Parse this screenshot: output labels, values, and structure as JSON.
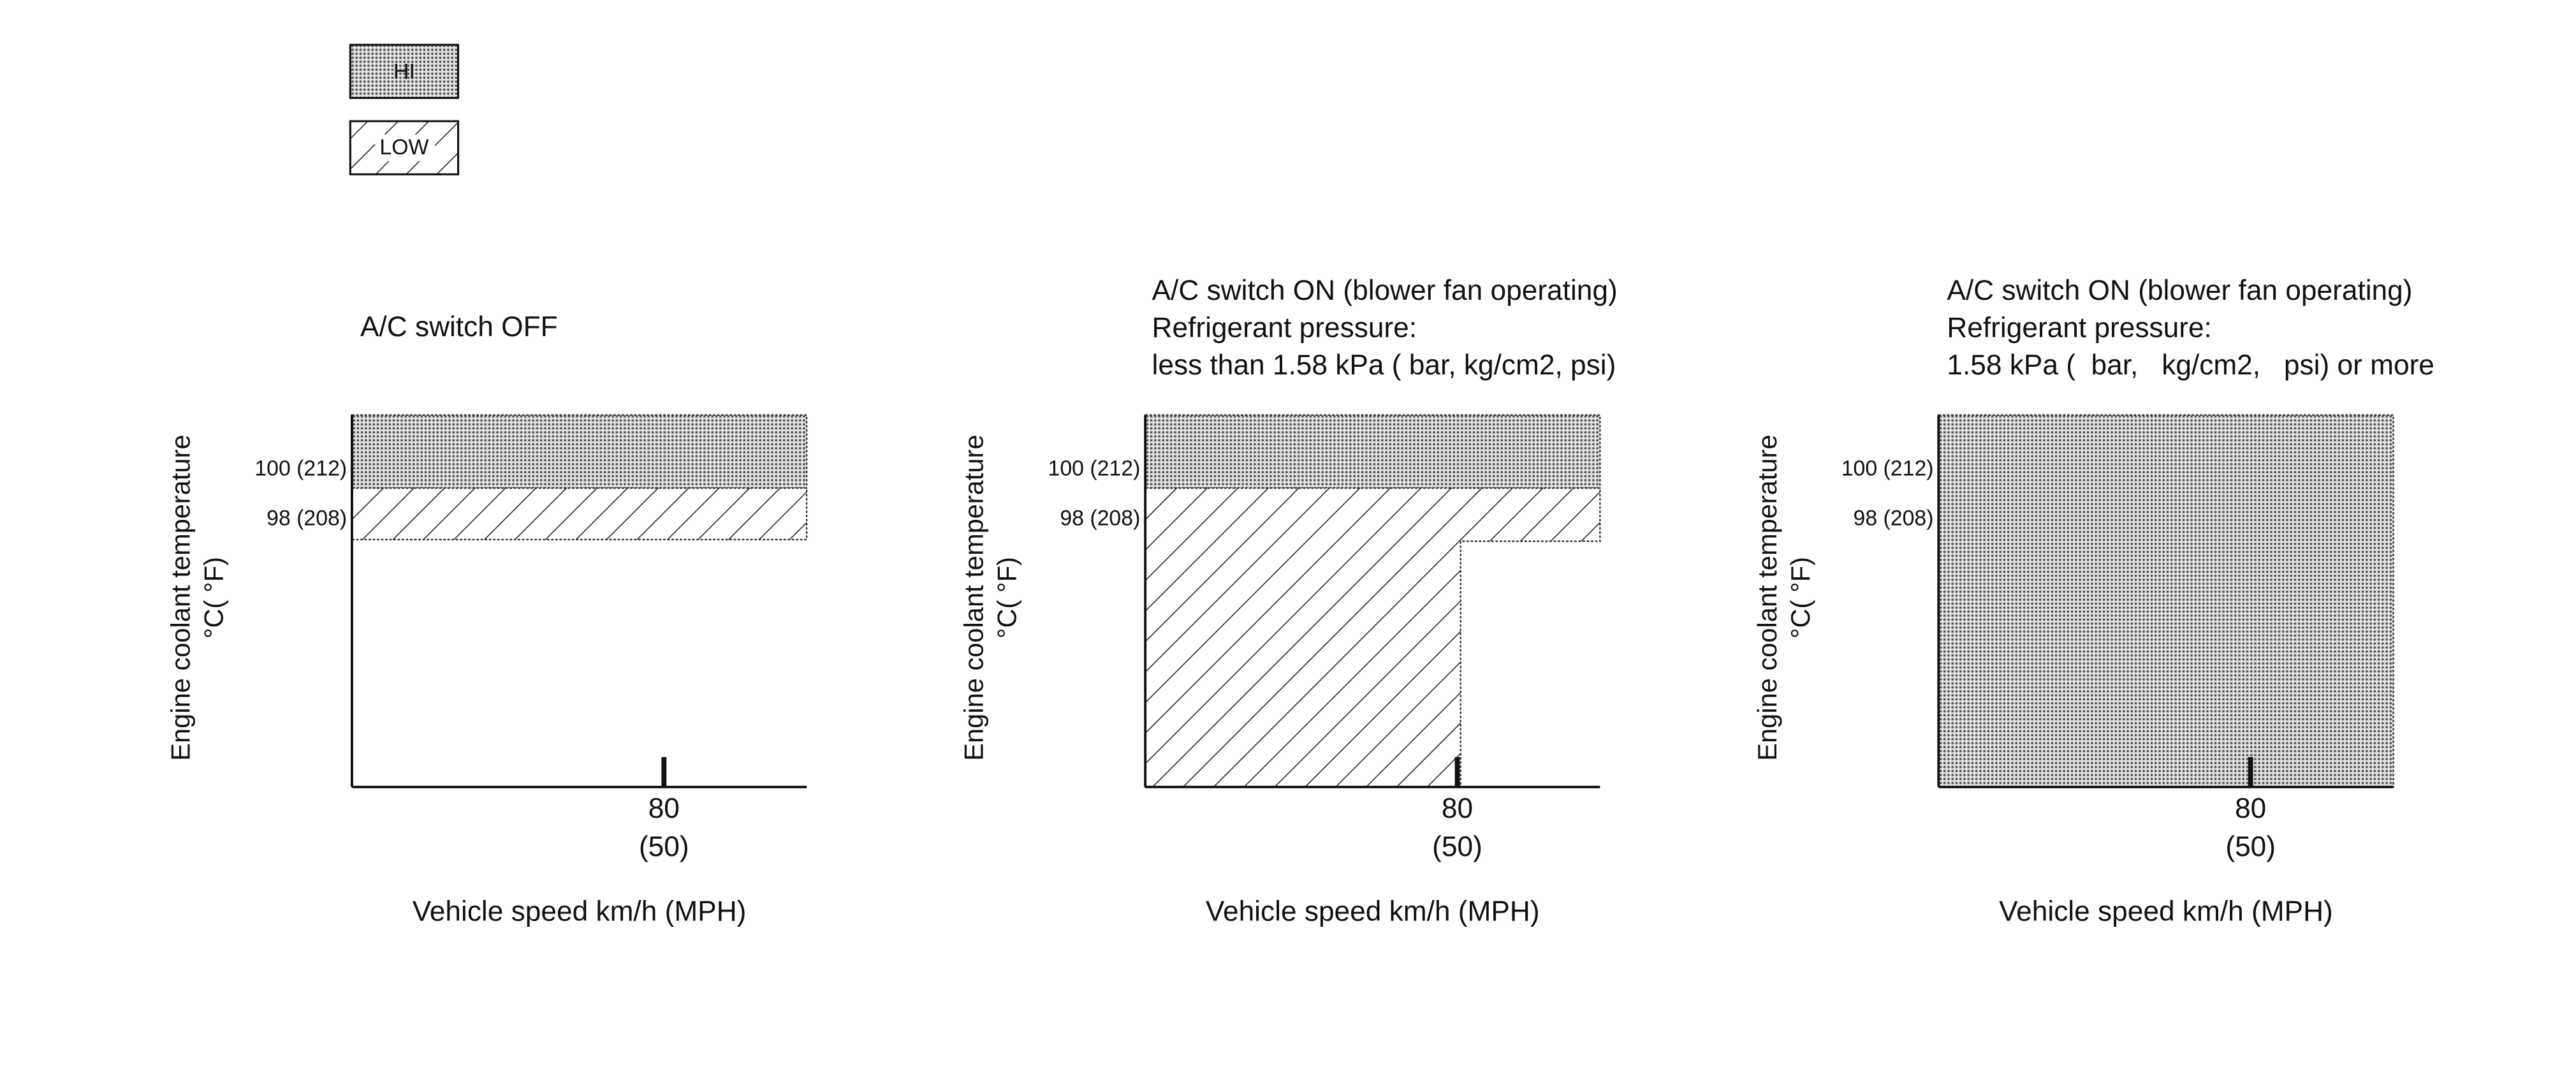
{
  "legend": {
    "items": [
      "HI",
      "LOW"
    ]
  },
  "panels": [
    {
      "title": [
        "A/C switch OFF"
      ],
      "y_axis_label": [
        "Engine coolant temperature",
        "°C( °F)"
      ],
      "y_ticks": [
        "100 (212)",
        "98 (208)"
      ],
      "x_tick": [
        "80",
        "(50)"
      ],
      "x_axis_label": "Vehicle speed km/h (MPH)"
    },
    {
      "title": [
        "A/C switch ON (blower fan operating)",
        "Refrigerant pressure:",
        "less than 1.58 kPa ( bar, kg/cm2, psi)"
      ],
      "y_axis_label": [
        "Engine coolant temperature",
        "°C( °F)"
      ],
      "y_ticks": [
        "100 (212)",
        "98 (208)"
      ],
      "x_tick": [
        "80",
        "(50)"
      ],
      "x_axis_label": "Vehicle speed km/h (MPH)"
    },
    {
      "title": [
        "A/C switch ON (blower fan operating)",
        "Refrigerant pressure:",
        "1.58 kPa (  bar,   kg/cm2,   psi) or more"
      ],
      "y_axis_label": [
        "Engine coolant temperature",
        "°C( °F)"
      ],
      "y_ticks": [
        "100 (212)",
        "98 (208)"
      ],
      "x_tick": [
        "80",
        "(50)"
      ],
      "x_axis_label": "Vehicle speed km/h (MPH)"
    }
  ]
}
